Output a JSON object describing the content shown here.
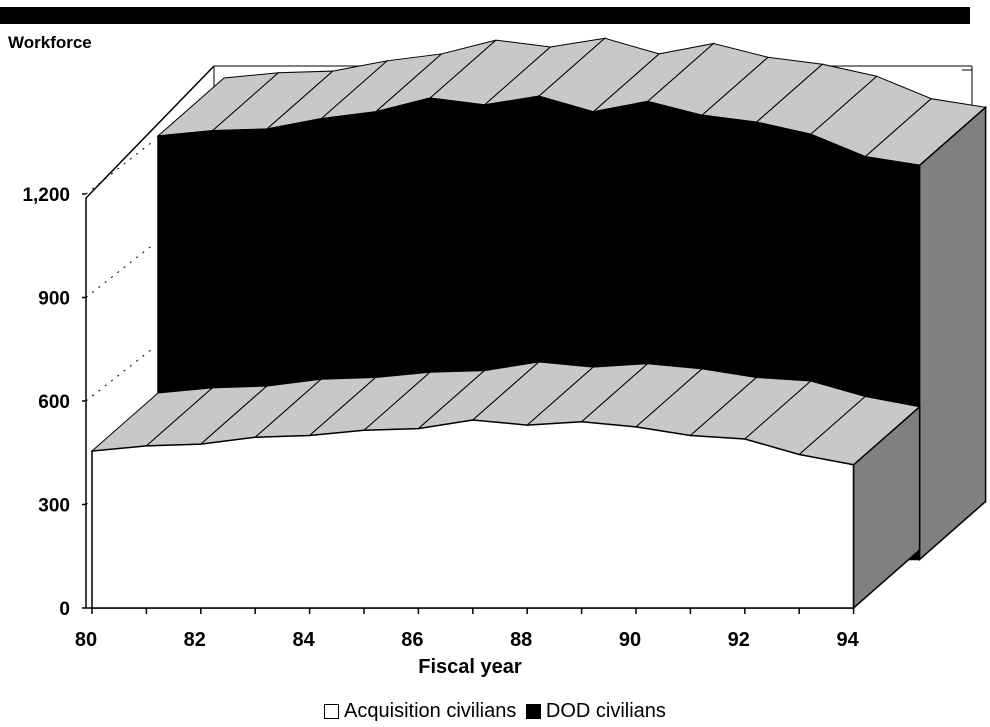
{
  "colors": {
    "acquisition_fill": "#ffffff",
    "dod_fill": "#000000",
    "top_surface": "#c8c8c8",
    "side_surface": "#808080"
  },
  "chart_data": {
    "type": "area",
    "subtype": "3d-stacked-ribbon",
    "ylabel": "Workforce",
    "xlabel": "Fiscal year",
    "x": [
      80,
      81,
      82,
      83,
      84,
      85,
      86,
      87,
      88,
      89,
      90,
      91,
      92,
      93,
      94
    ],
    "xticks": [
      "80",
      "82",
      "84",
      "86",
      "88",
      "90",
      "92",
      "94"
    ],
    "yticks": [
      "0",
      "300",
      "600",
      "900",
      "1,200"
    ],
    "ylim": [
      0,
      1200
    ],
    "series": [
      {
        "name": "Acquisition civilians",
        "values": [
          455,
          470,
          475,
          495,
          500,
          515,
          520,
          545,
          530,
          540,
          525,
          500,
          490,
          445,
          415
        ]
      },
      {
        "name": "DOD civilians",
        "values": [
          1200,
          1215,
          1220,
          1250,
          1270,
          1310,
          1290,
          1315,
          1270,
          1300,
          1260,
          1240,
          1205,
          1140,
          1115
        ]
      }
    ],
    "legend": "bottom"
  }
}
